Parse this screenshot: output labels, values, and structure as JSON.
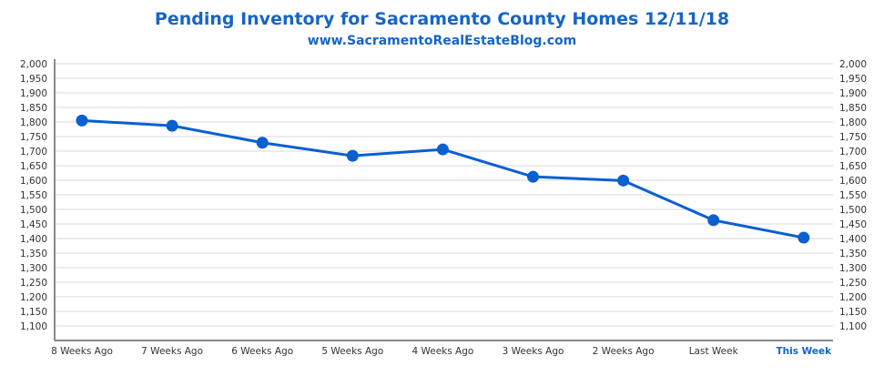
{
  "chart_data": {
    "type": "line",
    "title": "Pending Inventory for Sacramento County Homes 12/11/18",
    "subtitle": "www.SacramentoRealEstateBlog.com",
    "categories": [
      "8 Weeks Ago",
      "7 Weeks Ago",
      "6 Weeks Ago",
      "5 Weeks Ago",
      "4 Weeks Ago",
      "3 Weeks Ago",
      "2 Weeks Ago",
      "Last Week",
      "This Week"
    ],
    "highlight_category": "This Week",
    "series": [
      {
        "name": "Pending Inventory",
        "values": [
          1805,
          1787,
          1729,
          1684,
          1706,
          1612,
          1599,
          1463,
          1403
        ],
        "color": "#0a5fd1"
      }
    ],
    "yticks": [
      "1,100",
      "1,150",
      "1,200",
      "1,250",
      "1,300",
      "1,350",
      "1,400",
      "1,450",
      "1,500",
      "1,550",
      "1,600",
      "1,650",
      "1,700",
      "1,750",
      "1,800",
      "1,850",
      "1,900",
      "1,950",
      "2,000"
    ],
    "ytick_values": [
      1100,
      1150,
      1200,
      1250,
      1300,
      1350,
      1400,
      1450,
      1500,
      1550,
      1600,
      1650,
      1700,
      1750,
      1800,
      1850,
      1900,
      1950,
      2000
    ],
    "ylim": [
      1050,
      2000
    ],
    "grid": true,
    "xlabel": "",
    "ylabel": ""
  }
}
